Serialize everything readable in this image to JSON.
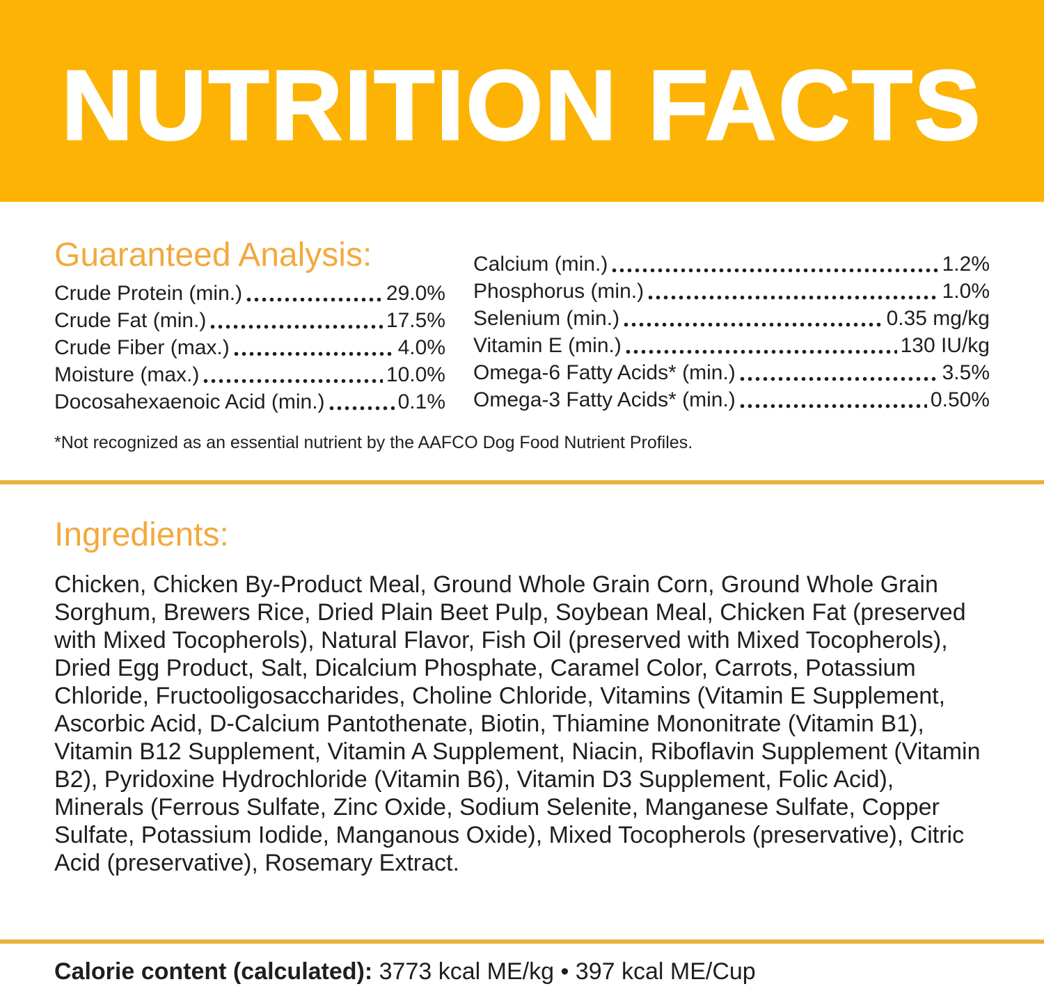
{
  "banner": {
    "title": "NUTRITION FACTS",
    "bg_color": "#fdb303",
    "text_color": "#ffffff"
  },
  "guaranteed_analysis": {
    "heading": "Guaranteed Analysis:",
    "heading_color": "#f2a93d",
    "left_rows": [
      {
        "label": "Crude Protein (min.)",
        "value": "29.0%"
      },
      {
        "label": "Crude Fat (min.)",
        "value": "17.5%"
      },
      {
        "label": "Crude Fiber (max.)",
        "value": "4.0%"
      },
      {
        "label": "Moisture (max.)",
        "value": "10.0%"
      },
      {
        "label": "Docosahexaenoic Acid (min.)",
        "value": "0.1%"
      }
    ],
    "right_rows": [
      {
        "label": "Calcium (min.)",
        "value": "1.2%"
      },
      {
        "label": "Phosphorus (min.)",
        "value": "1.0%"
      },
      {
        "label": "Selenium (min.)",
        "value": "0.35 mg/kg"
      },
      {
        "label": "Vitamin E (min.)",
        "value": "130 IU/kg"
      },
      {
        "label": "Omega-6 Fatty Acids* (min.)",
        "value": "3.5%"
      },
      {
        "label": "Omega-3 Fatty Acids* (min.)",
        "value": "0.50%"
      }
    ],
    "footnote": "*Not recognized as an essential nutrient by the AAFCO Dog Food Nutrient Profiles."
  },
  "ingredients": {
    "heading": "Ingredients:",
    "text": "Chicken, Chicken By-Product Meal, Ground Whole Grain Corn, Ground Whole Grain Sorghum, Brewers Rice, Dried Plain Beet Pulp, Soybean Meal, Chicken Fat (preserved with Mixed Tocopherols), Natural Flavor, Fish Oil (preserved with Mixed Tocopherols), Dried Egg Product, Salt, Dicalcium Phosphate, Caramel Color, Carrots, Potassium Chloride, Fructooligosaccharides, Choline Chloride, Vitamins (Vitamin E Supplement, Ascorbic Acid, D-Calcium Pantothenate, Biotin, Thiamine Mononitrate (Vitamin B1), Vitamin B12 Supplement, Vitamin A Supplement, Niacin, Riboflavin Supplement (Vitamin B2), Pyridoxine Hydrochloride (Vitamin B6), Vitamin D3 Supplement, Folic Acid), Minerals (Ferrous Sulfate, Zinc Oxide, Sodium Selenite, Manganese Sulfate, Copper Sulfate, Potassium Iodide, Manganous Oxide), Mixed Tocopherols (preservative), Citric Acid (preservative), Rosemary Extract."
  },
  "calorie": {
    "label": "Calorie content (calculated):",
    "value": " 3773 kcal ME/kg • 397 kcal ME/Cup"
  },
  "colors": {
    "accent_divider": "#e9b13b",
    "body_text": "#1e1e1e"
  }
}
